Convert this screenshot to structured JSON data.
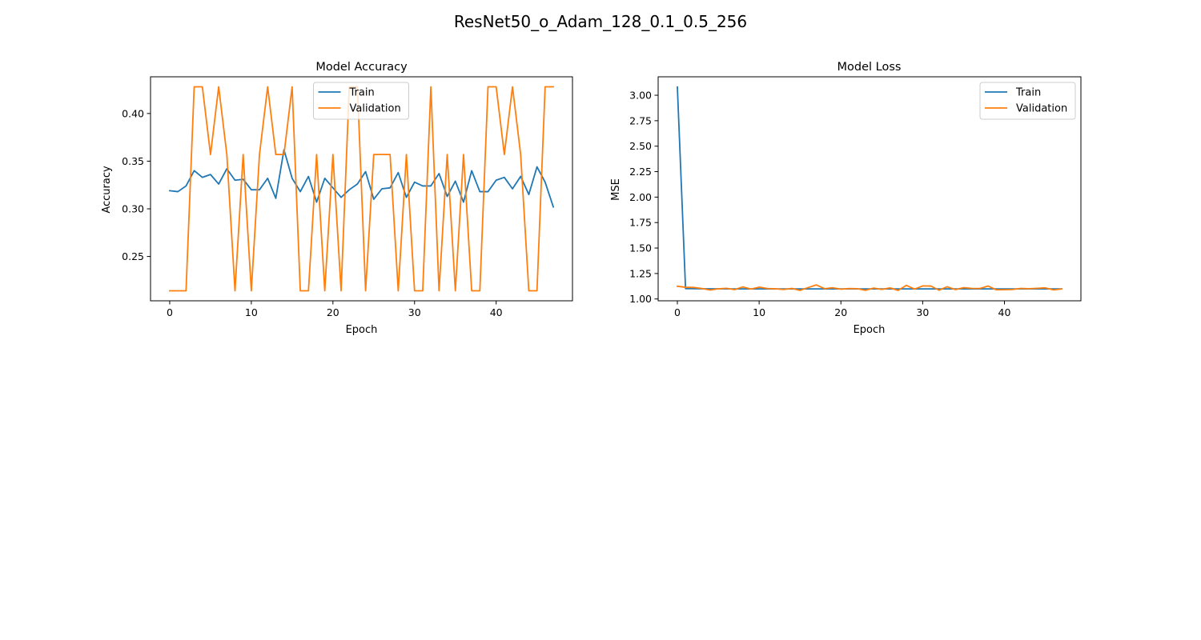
{
  "figure_title": "ResNet50_o_Adam_128_0.1_0.5_256",
  "chart_data": [
    {
      "type": "line",
      "title": "Model Accuracy",
      "xlabel": "Epoch",
      "ylabel": "Accuracy",
      "xlim": [
        -2.35,
        49.35
      ],
      "ylim": [
        0.2035,
        0.4385
      ],
      "xticks": [
        0,
        10,
        20,
        30,
        40
      ],
      "yticks": [
        0.25,
        0.3,
        0.35,
        0.4
      ],
      "grid": false,
      "legend": "upper center",
      "x": [
        0,
        1,
        2,
        3,
        4,
        5,
        6,
        7,
        8,
        9,
        10,
        11,
        12,
        13,
        14,
        15,
        16,
        17,
        18,
        19,
        20,
        21,
        22,
        23,
        24,
        25,
        26,
        27,
        28,
        29,
        30,
        31,
        32,
        33,
        34,
        35,
        36,
        37,
        38,
        39,
        40,
        41,
        42,
        43,
        44,
        45,
        46,
        47
      ],
      "series": [
        {
          "name": "Train",
          "color": "#1f77b4",
          "values": [
            0.319,
            0.318,
            0.324,
            0.34,
            0.333,
            0.336,
            0.326,
            0.342,
            0.33,
            0.331,
            0.32,
            0.32,
            0.332,
            0.311,
            0.362,
            0.332,
            0.318,
            0.334,
            0.307,
            0.332,
            0.322,
            0.312,
            0.32,
            0.326,
            0.339,
            0.31,
            0.321,
            0.322,
            0.338,
            0.312,
            0.328,
            0.324,
            0.324,
            0.337,
            0.313,
            0.329,
            0.307,
            0.34,
            0.318,
            0.318,
            0.33,
            0.333,
            0.321,
            0.334,
            0.315,
            0.344,
            0.328,
            0.302
          ]
        },
        {
          "name": "Validation",
          "color": "#ff7f0e",
          "values": [
            0.214,
            0.214,
            0.214,
            0.428,
            0.428,
            0.357,
            0.428,
            0.357,
            0.214,
            0.357,
            0.214,
            0.357,
            0.428,
            0.357,
            0.357,
            0.428,
            0.214,
            0.214,
            0.357,
            0.214,
            0.357,
            0.214,
            0.428,
            0.428,
            0.214,
            0.357,
            0.357,
            0.357,
            0.214,
            0.357,
            0.214,
            0.214,
            0.428,
            0.214,
            0.357,
            0.214,
            0.357,
            0.214,
            0.214,
            0.428,
            0.428,
            0.357,
            0.428,
            0.357,
            0.214,
            0.214,
            0.428,
            0.428
          ]
        }
      ]
    },
    {
      "type": "line",
      "title": "Model Loss",
      "xlabel": "Epoch",
      "ylabel": "MSE",
      "xlim": [
        -2.35,
        49.35
      ],
      "ylim": [
        0.982,
        3.181
      ],
      "xticks": [
        0,
        10,
        20,
        30,
        40
      ],
      "yticks": [
        1.0,
        1.25,
        1.5,
        1.75,
        2.0,
        2.25,
        2.5,
        2.75,
        3.0
      ],
      "ytick_labels": [
        "1.00",
        "1.25",
        "1.50",
        "1.75",
        "2.00",
        "2.25",
        "2.50",
        "2.75",
        "3.00"
      ],
      "grid": false,
      "legend": "upper right",
      "x": [
        0,
        1,
        2,
        3,
        4,
        5,
        6,
        7,
        8,
        9,
        10,
        11,
        12,
        13,
        14,
        15,
        16,
        17,
        18,
        19,
        20,
        21,
        22,
        23,
        24,
        25,
        26,
        27,
        28,
        29,
        30,
        31,
        32,
        33,
        34,
        35,
        36,
        37,
        38,
        39,
        40,
        41,
        42,
        43,
        44,
        45,
        46,
        47
      ],
      "series": [
        {
          "name": "Train",
          "color": "#1f77b4",
          "values": [
            3.08,
            1.102,
            1.101,
            1.1,
            1.1,
            1.1,
            1.099,
            1.099,
            1.099,
            1.099,
            1.099,
            1.099,
            1.099,
            1.099,
            1.099,
            1.099,
            1.099,
            1.099,
            1.099,
            1.099,
            1.099,
            1.099,
            1.099,
            1.099,
            1.099,
            1.099,
            1.099,
            1.099,
            1.099,
            1.099,
            1.099,
            1.099,
            1.099,
            1.099,
            1.099,
            1.099,
            1.099,
            1.099,
            1.099,
            1.099,
            1.099,
            1.099,
            1.099,
            1.099,
            1.099,
            1.099,
            1.099,
            1.099
          ]
        },
        {
          "name": "Validation",
          "color": "#ff7f0e",
          "values": [
            1.125,
            1.115,
            1.113,
            1.103,
            1.088,
            1.1,
            1.105,
            1.092,
            1.118,
            1.097,
            1.116,
            1.103,
            1.1,
            1.093,
            1.104,
            1.084,
            1.112,
            1.138,
            1.101,
            1.11,
            1.096,
            1.103,
            1.101,
            1.085,
            1.107,
            1.094,
            1.109,
            1.084,
            1.134,
            1.097,
            1.128,
            1.127,
            1.086,
            1.12,
            1.092,
            1.111,
            1.104,
            1.103,
            1.127,
            1.09,
            1.091,
            1.093,
            1.104,
            1.101,
            1.105,
            1.109,
            1.089,
            1.098
          ]
        }
      ]
    }
  ]
}
